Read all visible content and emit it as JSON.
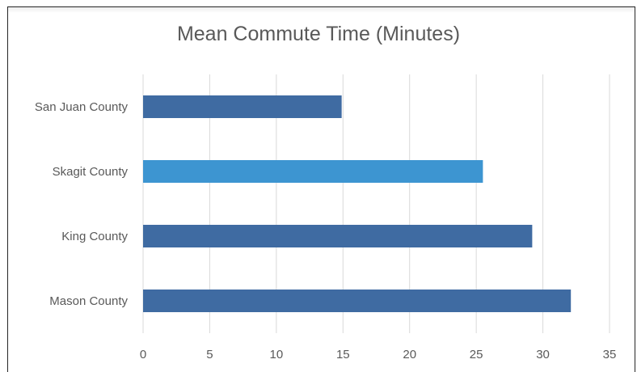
{
  "chart_data": {
    "type": "bar",
    "orientation": "horizontal",
    "title": "Mean Commute Time (Minutes)",
    "categories": [
      "San Juan County",
      "Skagit County",
      "King County",
      "Mason County"
    ],
    "values": [
      14.9,
      25.5,
      29.2,
      32.1
    ],
    "xlabel": "",
    "ylabel": "",
    "xlim": [
      0,
      35
    ],
    "xticks": [
      0,
      5,
      10,
      15,
      20,
      25,
      30,
      35
    ],
    "grid": "vertical",
    "legend": "none",
    "colors": {
      "default": "#3f6ba2",
      "highlight": "#3d95d1",
      "highlight_category": "Skagit County",
      "gridline": "#d9d9d9",
      "text": "#595959"
    }
  }
}
